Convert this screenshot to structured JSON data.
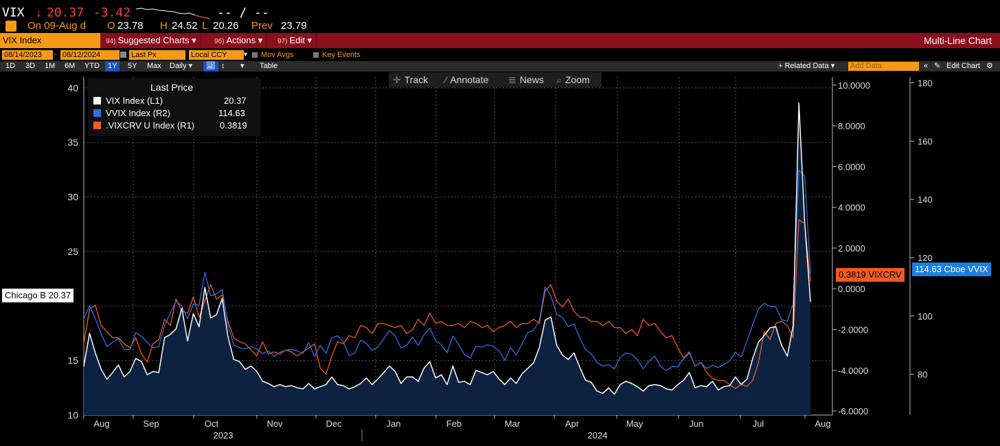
{
  "quote": {
    "ticker": "VIX",
    "arrow": "↓",
    "last": "20.37",
    "change": "-3.42",
    "dashes": "-- / --",
    "on_date": "On 09-Aug d",
    "open_label": "O",
    "open": "23.78",
    "high_label": "H",
    "high": "24.52",
    "low_label": "L",
    "low": "20.26",
    "prev_label": "Prev",
    "prev": "23.79"
  },
  "toolbar": {
    "security": "VIX Index",
    "suggested": {
      "num": "94)",
      "label": "Suggested Charts ▾"
    },
    "actions": {
      "num": "96)",
      "label": "Actions ▾"
    },
    "edit": {
      "num": "97)",
      "label": "Edit ▾"
    },
    "chart_type": "Multi-Line Chart"
  },
  "settings": {
    "start_date": "08/14/2023",
    "end_date": "08/12/2024",
    "field": "Last Px",
    "currency": "Local CCY",
    "mov_avgs": "Mov Avgs",
    "key_events": "Key Events"
  },
  "periods": [
    "1D",
    "3D",
    "1M",
    "6M",
    "YTD",
    "1Y",
    "5Y",
    "Max"
  ],
  "active_period": "1Y",
  "frequency": "Daily ▾",
  "table_label": "Table",
  "related_data": "+ Related Data ▾",
  "add_data_placeholder": "Add Data",
  "edit_chart": "Edit Chart",
  "tools": {
    "track": "Track",
    "annotate": "Annotate",
    "news": "News",
    "zoom": "Zoom"
  },
  "legend": {
    "title": "Last Price",
    "items": [
      {
        "name": "VIX Index  (L1)",
        "value": "20.37",
        "color": "#ffffff"
      },
      {
        "name": "VVIX Index  (R2)",
        "value": "114.63",
        "color": "#2f6fe6"
      },
      {
        "name": ".VIXCRV U Index  (R1)",
        "value": "0.3819",
        "color": "#f05a22"
      }
    ]
  },
  "tags": {
    "vix": "Chicago B 20.37",
    "vixcrv": "0.3819 VIXCRV",
    "vvix": "114.63 Cboe VVIX"
  },
  "chart_data": {
    "type": "line",
    "x_range": [
      "2023-08-14",
      "2024-08-12"
    ],
    "x_labels": [
      "Aug",
      "Sep",
      "Oct",
      "Nov",
      "Dec",
      "Jan",
      "Feb",
      "Mar",
      "Apr",
      "May",
      "Jun",
      "Jul",
      "Aug"
    ],
    "year_labels": [
      "2023",
      "2024"
    ],
    "left_axis": {
      "ticks": [
        40,
        35,
        30,
        25,
        15,
        10
      ],
      "range": [
        10,
        41
      ]
    },
    "right1_axis": {
      "ticks": [
        "10.0000",
        "8.0000",
        "6.0000",
        "4.0000",
        "2.0000",
        "0.0000",
        "-2.0000",
        "-4.0000",
        "-6.0000"
      ],
      "range": [
        -6.2,
        10.4
      ]
    },
    "right2_axis": {
      "ticks": [
        180,
        160,
        140,
        120,
        100,
        80
      ],
      "range": [
        66,
        182
      ]
    },
    "grid": true,
    "legend_position": "top-left",
    "series": [
      {
        "name": "VIX Index",
        "axis": "L1",
        "color": "#ffffff",
        "values": [
          14.5,
          17.5,
          15.7,
          14.2,
          13.3,
          13.9,
          14.6,
          13.5,
          14.0,
          15.2,
          14.9,
          13.7,
          14.0,
          13.9,
          17.1,
          17.4,
          17.9,
          19.8,
          16.8,
          19.3,
          18.1,
          21.7,
          18.9,
          19.2,
          20.7,
          17.2,
          15.1,
          14.9,
          14.2,
          14.5,
          14.0,
          13.1,
          12.9,
          12.6,
          12.8,
          12.6,
          12.7,
          12.5,
          12.4,
          12.9,
          12.4,
          12.6,
          12.8,
          13.5,
          12.8,
          12.7,
          12.4,
          12.6,
          12.9,
          13.4,
          12.8,
          13.3,
          13.9,
          14.5,
          14.0,
          12.9,
          13.5,
          13.5,
          13.1,
          14.3,
          14.9,
          13.4,
          13.7,
          12.8,
          14.5,
          13.0,
          13.1,
          12.8,
          14.1,
          13.9,
          13.7,
          14.0,
          13.3,
          12.8,
          13.4,
          12.9,
          13.8,
          14.3,
          14.8,
          16.2,
          18.7,
          19.0,
          16.4,
          15.5,
          15.1,
          15.7,
          14.4,
          13.2,
          13.0,
          12.2,
          12.0,
          12.5,
          11.9,
          12.8,
          13.1,
          12.9,
          12.6,
          12.2,
          12.7,
          12.8,
          12.7,
          12.4,
          12.3,
          12.8,
          13.2,
          13.9,
          12.5,
          12.7,
          12.6,
          13.1,
          12.3,
          12.6,
          12.7,
          13.5,
          12.8,
          13.3,
          15.2,
          16.7,
          17.3,
          18.0,
          18.1,
          16.4,
          15.4,
          18.2,
          38.6,
          27.7,
          20.4
        ]
      },
      {
        "name": "VVIX Index",
        "axis": "R2",
        "color": "#2f6fe6",
        "values": [
          99.0,
          103.5,
          99.0,
          94.0,
          89.5,
          91.0,
          92.2,
          88.5,
          88.5,
          94.3,
          93.0,
          91.0,
          89.0,
          89.5,
          96.7,
          101.0,
          105.1,
          103.5,
          99.0,
          104.2,
          103.7,
          115.0,
          106.9,
          107.6,
          109.1,
          96.9,
          90.0,
          89.1,
          88.7,
          89.5,
          88.7,
          87.1,
          88.0,
          86.1,
          87.5,
          88.3,
          88.5,
          88.0,
          87.2,
          90.8,
          86.1,
          89.9,
          87.2,
          92.5,
          93.2,
          91.1,
          86.4,
          87.3,
          91.7,
          90.6,
          88.2,
          89.4,
          92.2,
          95.0,
          93.2,
          89.0,
          89.9,
          92.8,
          89.9,
          93.6,
          95.8,
          91.6,
          90.1,
          87.4,
          93.1,
          90.2,
          86.8,
          85.5,
          89.6,
          89.3,
          90.1,
          89.6,
          88.1,
          84.8,
          89.2,
          86.6,
          90.6,
          94.3,
          95.1,
          98.5,
          110.0,
          106.9,
          100.6,
          99.5,
          96.4,
          97.2,
          92.5,
          88.5,
          87.0,
          84.0,
          82.8,
          83.3,
          81.9,
          85.8,
          87.3,
          86.9,
          85.0,
          81.9,
          84.5,
          86.2,
          82.7,
          81.2,
          82.7,
          82.6,
          85.3,
          87.2,
          82.8,
          84.0,
          82.0,
          83.1,
          82.3,
          83.4,
          84.6,
          87.5,
          86.0,
          91.4,
          97.0,
          102.5,
          104.3,
          103.3,
          103.1,
          98.7,
          98.2,
          104.1,
          150.0,
          148.0,
          114.6
        ]
      },
      {
        "name": ".VIXCRV U Index",
        "axis": "R1",
        "color": "#f05a22",
        "values": [
          -2.7,
          -1.0,
          -0.8,
          -1.8,
          -2.1,
          -2.4,
          -2.4,
          -2.7,
          -2.9,
          -2.4,
          -3.2,
          -3.6,
          -2.7,
          -2.5,
          -1.5,
          -1.8,
          -0.5,
          -1.1,
          -1.2,
          -0.4,
          -1.4,
          -0.6,
          0.2,
          -0.5,
          -0.3,
          -1.6,
          -2.4,
          -2.6,
          -2.7,
          -3.0,
          -3.3,
          -2.6,
          -3.2,
          -3.1,
          -3.2,
          -3.0,
          -3.1,
          -3.3,
          -3.1,
          -2.9,
          -2.7,
          -3.9,
          -4.2,
          -3.3,
          -2.6,
          -2.7,
          -2.3,
          -2.4,
          -1.8,
          -1.9,
          -2.2,
          -1.7,
          -1.7,
          -1.8,
          -1.9,
          -1.8,
          -2.2,
          -2.0,
          -1.5,
          -1.8,
          -1.2,
          -1.7,
          -1.6,
          -1.8,
          -1.8,
          -1.7,
          -1.9,
          -1.6,
          -1.7,
          -1.9,
          -1.8,
          -2.1,
          -1.9,
          -1.8,
          -1.6,
          -1.9,
          -1.7,
          -1.7,
          -1.5,
          -1.7,
          -0.1,
          0.2,
          -0.6,
          -0.9,
          -0.5,
          -1.1,
          -1.4,
          -1.4,
          -1.6,
          -1.6,
          -1.8,
          -1.6,
          -1.9,
          -1.9,
          -2.2,
          -2.0,
          -2.3,
          -1.5,
          -1.8,
          -1.7,
          -2.1,
          -2.4,
          -2.3,
          -2.9,
          -3.4,
          -3.1,
          -3.8,
          -3.6,
          -4.1,
          -4.4,
          -4.5,
          -4.5,
          -4.7,
          -4.9,
          -4.7,
          -4.8,
          -4.5,
          -3.6,
          -2.1,
          -2.5,
          -1.7,
          -1.6,
          -1.8,
          -2.4,
          3.4,
          3.2,
          0.38
        ]
      }
    ]
  }
}
